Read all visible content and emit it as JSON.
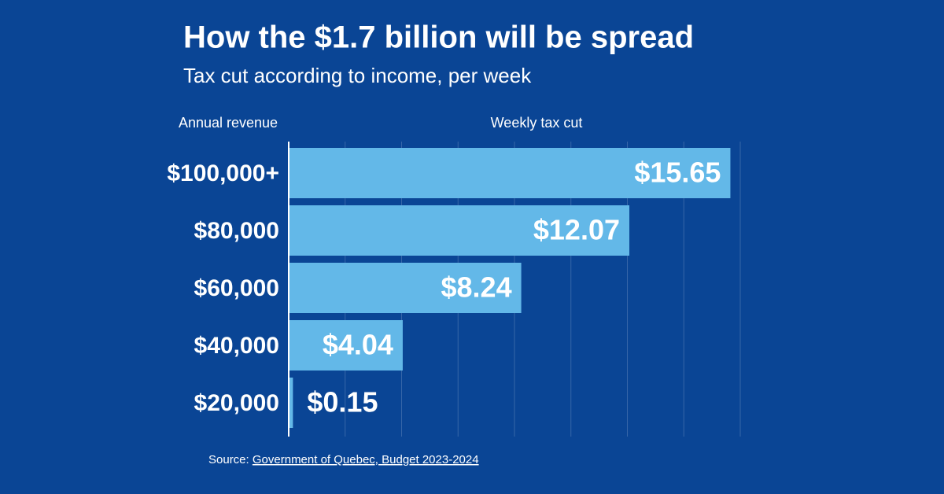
{
  "chart_data": {
    "type": "bar",
    "orientation": "horizontal",
    "title": "How the $1.7 billion will be spread",
    "subtitle": "Tax cut according to income, per week",
    "category_axis_label": "Annual revenue",
    "value_axis_label": "Weekly tax cut",
    "categories": [
      "$100,000+",
      "$80,000",
      "$60,000",
      "$40,000",
      "$20,000"
    ],
    "values": [
      15.65,
      12.07,
      8.24,
      4.04,
      0.15
    ],
    "value_labels": [
      "$15.65",
      "$12.07",
      "$8.24",
      "$4.04",
      "$0.15"
    ],
    "color": "#63b8e8",
    "xlim": [
      0,
      16
    ],
    "xticks": [
      0,
      2,
      4,
      6,
      8,
      10,
      12,
      14,
      16
    ],
    "grid": true,
    "source_prefix": "Source:",
    "source": "Government of Quebec, Budget 2023-2024"
  }
}
